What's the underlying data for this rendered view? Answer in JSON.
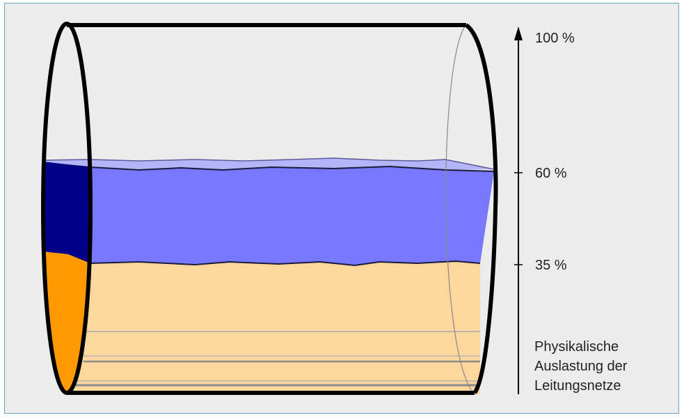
{
  "scale": {
    "top_label": "100 %",
    "marks": [
      {
        "label": "60 %",
        "value": 60
      },
      {
        "label": "35 %",
        "value": 35
      }
    ],
    "caption_lines": [
      "Physikalische",
      "Auslastung der",
      "Leitungsnetze"
    ]
  },
  "layers": [
    {
      "id": "lower",
      "from": 0,
      "to": 35
    },
    {
      "id": "upper",
      "from": 35,
      "to": 60
    }
  ],
  "colors": {
    "background": "#ececec",
    "frame_border": "#6a9fbf",
    "lower_fill": "#fdd79c",
    "lower_end": "#ff9900",
    "upper_fill": "#7878ff",
    "upper_end": "#000088",
    "upper_surface": "#b4b4f8",
    "outline": "#000000"
  }
}
